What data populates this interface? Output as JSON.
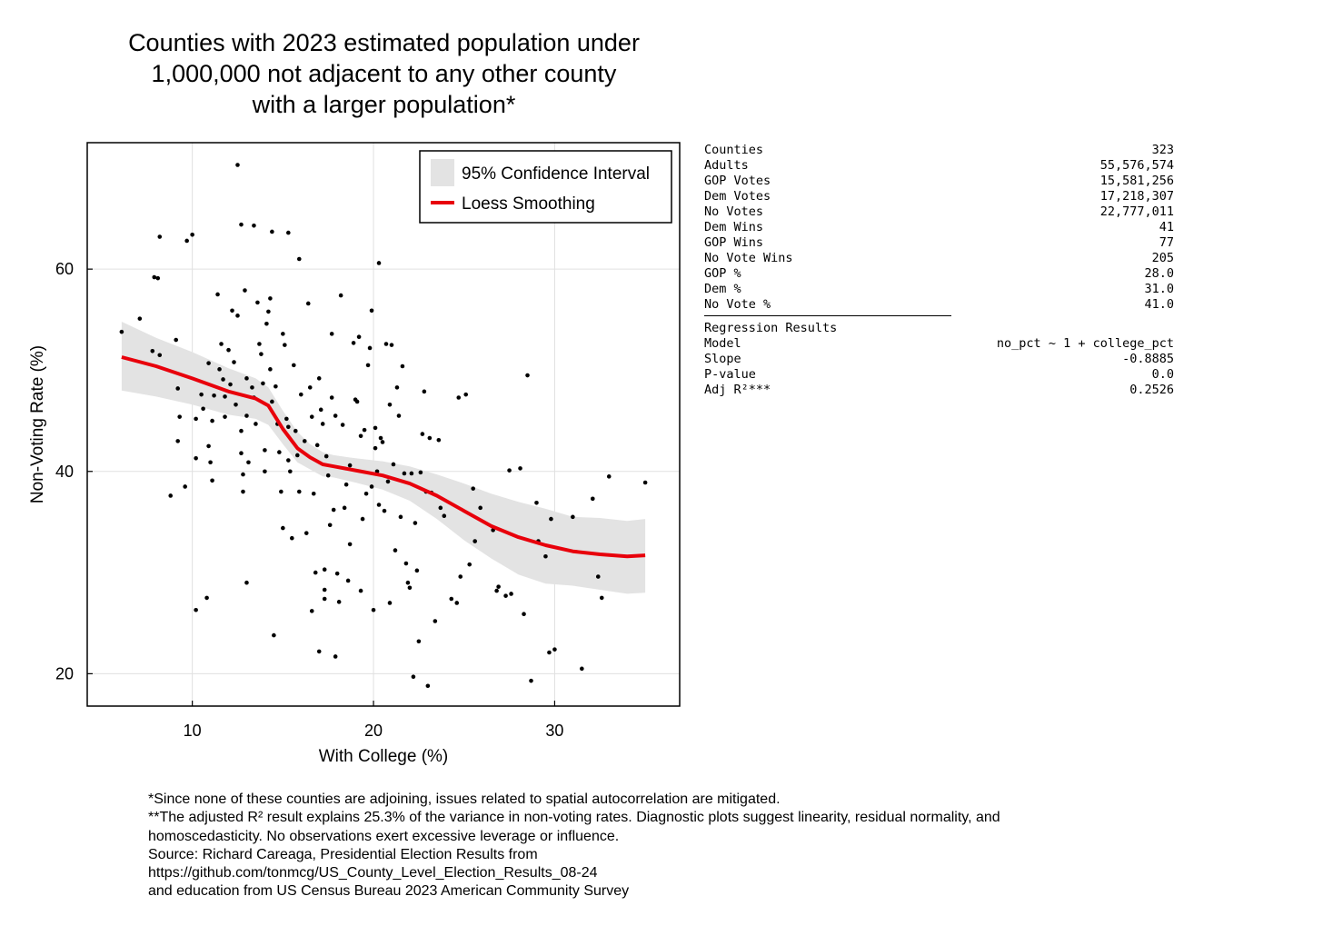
{
  "title_lines": [
    "Counties with 2023 estimated population under",
    "1,000,000 not adjacent to any other county",
    "with a larger population*"
  ],
  "stats": {
    "rows": [
      {
        "label": "Counties",
        "value": "323"
      },
      {
        "label": "Adults",
        "value": "55,576,574"
      },
      {
        "label": "GOP Votes",
        "value": "15,581,256"
      },
      {
        "label": "Dem Votes",
        "value": "17,218,307"
      },
      {
        "label": "No Votes",
        "value": "22,777,011"
      },
      {
        "label": "Dem Wins",
        "value": "41"
      },
      {
        "label": "GOP Wins",
        "value": "77"
      },
      {
        "label": "No Vote Wins",
        "value": "205"
      },
      {
        "label": "GOP %",
        "value": "28.0"
      },
      {
        "label": "Dem %",
        "value": "31.0"
      },
      {
        "label": "No Vote %",
        "value": "41.0"
      }
    ],
    "regression_heading": "Regression Results",
    "regression_rows": [
      {
        "label": "Model",
        "value": "no_pct ~ 1 + college_pct"
      },
      {
        "label": "Slope",
        "value": "-0.8885"
      },
      {
        "label": "P-value",
        "value": "0.0"
      },
      {
        "label": "Adj R²***",
        "value": "0.2526"
      }
    ]
  },
  "footnotes": [
    "*Since none of these counties are adjoining, issues related to spatial autocorrelation are mitigated.",
    "**The adjusted R² result explains 25.3% of the variance in non-voting rates.  Diagnostic plots suggest linearity, residual normality, and",
    "homoscedasticity. No observations exert excessive leverage or influence.",
    "Source: Richard Careaga, Presidential Election Results from",
    "https://github.com/tonmcg/US_County_Level_Election_Results_08-24",
    "and education from US Census Bureau 2023 American Community Survey"
  ],
  "colors": {
    "points": "#000000",
    "loess": "#e8000b",
    "ci_band": "#e3e3e3",
    "grid": "#e0e0e0"
  },
  "chart_data": {
    "type": "scatter",
    "xlabel": "With College (%)",
    "ylabel": "Non-Voting Rate (%)",
    "xlim": [
      4.2,
      36.9
    ],
    "ylim": [
      16.8,
      72.5
    ],
    "xticks": [
      10,
      20,
      30
    ],
    "yticks": [
      20,
      40,
      60
    ],
    "grid": true,
    "legend_position": "top-right",
    "legend": [
      {
        "label": "95% Confidence Interval",
        "kind": "band"
      },
      {
        "label": "Loess Smoothing",
        "kind": "line"
      }
    ],
    "points": [
      [
        6.1,
        53.8
      ],
      [
        7.1,
        55.1
      ],
      [
        7.8,
        51.9
      ],
      [
        7.9,
        59.2
      ],
      [
        8.1,
        59.1
      ],
      [
        8.2,
        63.2
      ],
      [
        8.2,
        51.5
      ],
      [
        9.7,
        62.8
      ],
      [
        10.0,
        63.4
      ],
      [
        12.5,
        70.3
      ],
      [
        12.7,
        64.4
      ],
      [
        13.4,
        64.3
      ],
      [
        14.4,
        63.7
      ],
      [
        15.3,
        63.6
      ],
      [
        15.9,
        61.0
      ],
      [
        20.3,
        60.6
      ],
      [
        9.1,
        53.0
      ],
      [
        9.2,
        48.2
      ],
      [
        9.3,
        45.4
      ],
      [
        9.2,
        43.0
      ],
      [
        8.8,
        37.6
      ],
      [
        9.6,
        38.5
      ],
      [
        10.2,
        45.2
      ],
      [
        10.2,
        41.3
      ],
      [
        10.2,
        26.3
      ],
      [
        10.8,
        27.5
      ],
      [
        10.5,
        47.6
      ],
      [
        10.6,
        46.2
      ],
      [
        10.9,
        50.7
      ],
      [
        10.9,
        42.5
      ],
      [
        11.1,
        45.0
      ],
      [
        11.1,
        39.1
      ],
      [
        11.0,
        40.9
      ],
      [
        11.2,
        47.5
      ],
      [
        11.4,
        57.5
      ],
      [
        11.5,
        50.1
      ],
      [
        11.6,
        52.6
      ],
      [
        11.7,
        49.1
      ],
      [
        11.8,
        47.4
      ],
      [
        11.8,
        45.4
      ],
      [
        12.0,
        52.0
      ],
      [
        12.1,
        48.6
      ],
      [
        12.2,
        55.9
      ],
      [
        12.3,
        50.8
      ],
      [
        12.4,
        46.6
      ],
      [
        12.5,
        55.4
      ],
      [
        12.7,
        44.0
      ],
      [
        12.7,
        41.8
      ],
      [
        12.8,
        39.7
      ],
      [
        12.8,
        38.0
      ],
      [
        12.9,
        57.9
      ],
      [
        13.0,
        49.2
      ],
      [
        13.0,
        45.5
      ],
      [
        13.1,
        40.9
      ],
      [
        13.0,
        29.0
      ],
      [
        13.3,
        48.3
      ],
      [
        13.4,
        47.3
      ],
      [
        13.5,
        44.7
      ],
      [
        13.6,
        56.7
      ],
      [
        13.7,
        52.6
      ],
      [
        13.8,
        51.6
      ],
      [
        13.9,
        48.7
      ],
      [
        14.0,
        42.1
      ],
      [
        14.0,
        40.0
      ],
      [
        14.1,
        54.6
      ],
      [
        14.2,
        55.8
      ],
      [
        14.3,
        57.1
      ],
      [
        14.3,
        50.1
      ],
      [
        14.4,
        46.9
      ],
      [
        14.5,
        23.8
      ],
      [
        14.6,
        48.4
      ],
      [
        14.7,
        44.7
      ],
      [
        14.8,
        41.9
      ],
      [
        14.9,
        38.0
      ],
      [
        15.0,
        53.6
      ],
      [
        15.0,
        34.4
      ],
      [
        15.1,
        52.5
      ],
      [
        15.2,
        45.2
      ],
      [
        15.3,
        44.4
      ],
      [
        15.3,
        41.1
      ],
      [
        15.4,
        40.0
      ],
      [
        15.5,
        33.4
      ],
      [
        15.6,
        50.5
      ],
      [
        15.7,
        44.0
      ],
      [
        15.8,
        41.6
      ],
      [
        15.9,
        38.0
      ],
      [
        16.0,
        47.6
      ],
      [
        16.2,
        43.0
      ],
      [
        16.3,
        33.9
      ],
      [
        16.4,
        56.6
      ],
      [
        16.5,
        48.3
      ],
      [
        16.6,
        45.4
      ],
      [
        16.6,
        26.2
      ],
      [
        16.7,
        37.8
      ],
      [
        16.8,
        30.0
      ],
      [
        16.9,
        42.6
      ],
      [
        17.0,
        49.2
      ],
      [
        17.0,
        22.2
      ],
      [
        17.1,
        46.1
      ],
      [
        17.2,
        44.7
      ],
      [
        17.3,
        30.3
      ],
      [
        17.3,
        28.3
      ],
      [
        17.3,
        27.4
      ],
      [
        17.4,
        41.5
      ],
      [
        17.5,
        39.6
      ],
      [
        17.6,
        34.7
      ],
      [
        17.7,
        53.6
      ],
      [
        17.7,
        47.3
      ],
      [
        17.8,
        36.2
      ],
      [
        17.9,
        45.5
      ],
      [
        17.9,
        21.7
      ],
      [
        18.0,
        29.9
      ],
      [
        18.1,
        27.1
      ],
      [
        18.2,
        57.4
      ],
      [
        18.3,
        44.6
      ],
      [
        18.4,
        36.4
      ],
      [
        18.5,
        38.7
      ],
      [
        18.6,
        29.2
      ],
      [
        18.7,
        40.6
      ],
      [
        18.7,
        32.8
      ],
      [
        18.9,
        52.7
      ],
      [
        19.0,
        47.1
      ],
      [
        19.1,
        46.9
      ],
      [
        19.2,
        53.3
      ],
      [
        19.3,
        43.5
      ],
      [
        19.3,
        28.2
      ],
      [
        19.4,
        35.3
      ],
      [
        19.5,
        44.1
      ],
      [
        19.6,
        37.8
      ],
      [
        19.7,
        50.5
      ],
      [
        19.8,
        52.2
      ],
      [
        19.9,
        55.9
      ],
      [
        19.9,
        38.5
      ],
      [
        20.0,
        26.3
      ],
      [
        20.1,
        44.3
      ],
      [
        20.1,
        42.3
      ],
      [
        20.2,
        40.0
      ],
      [
        20.3,
        36.7
      ],
      [
        20.4,
        43.3
      ],
      [
        20.5,
        42.9
      ],
      [
        20.6,
        36.1
      ],
      [
        20.7,
        52.6
      ],
      [
        20.8,
        39.0
      ],
      [
        20.9,
        46.6
      ],
      [
        20.9,
        27.0
      ],
      [
        21.0,
        52.5
      ],
      [
        21.1,
        40.7
      ],
      [
        21.2,
        32.2
      ],
      [
        21.3,
        48.3
      ],
      [
        21.4,
        45.5
      ],
      [
        21.5,
        35.5
      ],
      [
        21.6,
        50.4
      ],
      [
        21.7,
        39.8
      ],
      [
        21.8,
        30.9
      ],
      [
        21.9,
        29.0
      ],
      [
        22.0,
        28.5
      ],
      [
        22.1,
        39.8
      ],
      [
        22.2,
        19.7
      ],
      [
        22.3,
        34.9
      ],
      [
        22.4,
        30.2
      ],
      [
        22.5,
        23.2
      ],
      [
        22.6,
        39.9
      ],
      [
        22.7,
        43.7
      ],
      [
        22.8,
        47.9
      ],
      [
        22.9,
        38.0
      ],
      [
        23.0,
        18.8
      ],
      [
        23.1,
        43.3
      ],
      [
        23.2,
        37.9
      ],
      [
        23.4,
        25.2
      ],
      [
        23.6,
        43.1
      ],
      [
        23.7,
        36.4
      ],
      [
        23.9,
        35.6
      ],
      [
        24.3,
        27.4
      ],
      [
        24.6,
        27.0
      ],
      [
        24.7,
        47.3
      ],
      [
        24.8,
        29.6
      ],
      [
        25.1,
        47.6
      ],
      [
        25.3,
        30.8
      ],
      [
        25.5,
        38.3
      ],
      [
        25.6,
        33.1
      ],
      [
        25.9,
        36.4
      ],
      [
        26.6,
        34.2
      ],
      [
        26.8,
        28.2
      ],
      [
        26.9,
        28.6
      ],
      [
        27.3,
        27.7
      ],
      [
        27.5,
        40.1
      ],
      [
        27.6,
        27.9
      ],
      [
        28.1,
        40.3
      ],
      [
        28.3,
        25.9
      ],
      [
        28.5,
        49.5
      ],
      [
        28.7,
        19.3
      ],
      [
        29.0,
        36.9
      ],
      [
        29.1,
        33.1
      ],
      [
        29.5,
        31.6
      ],
      [
        29.7,
        22.1
      ],
      [
        29.8,
        35.3
      ],
      [
        30.0,
        22.4
      ],
      [
        31.0,
        35.5
      ],
      [
        31.5,
        20.5
      ],
      [
        32.1,
        37.3
      ],
      [
        32.4,
        29.6
      ],
      [
        32.6,
        27.5
      ],
      [
        33.0,
        39.5
      ],
      [
        35.0,
        38.9
      ]
    ],
    "loess_x": [
      6.1,
      8,
      10,
      12,
      13.5,
      14.2,
      15,
      15.8,
      16.5,
      17.2,
      17.8,
      19,
      20.5,
      22,
      23.5,
      25,
      26.5,
      28,
      29.5,
      31,
      32.5,
      34,
      35
    ],
    "loess_y": [
      51.3,
      50.4,
      49.2,
      47.9,
      47.2,
      46.5,
      44.2,
      42.3,
      41.4,
      40.7,
      40.5,
      40.1,
      39.6,
      38.8,
      37.6,
      36.1,
      34.6,
      33.5,
      32.7,
      32.1,
      31.8,
      31.6,
      31.7
    ],
    "ci_lower": [
      48.0,
      47.4,
      46.6,
      45.6,
      45.2,
      44.6,
      42.7,
      40.9,
      40.2,
      39.5,
      39.4,
      38.9,
      38.2,
      37.1,
      35.3,
      33.2,
      31.4,
      29.8,
      28.9,
      28.7,
      28.3,
      27.9,
      28.0
    ],
    "ci_upper": [
      54.8,
      53.2,
      51.8,
      50.2,
      49.2,
      48.3,
      46.0,
      43.9,
      42.7,
      41.9,
      41.6,
      41.3,
      41.0,
      40.5,
      39.7,
      38.8,
      37.8,
      37.0,
      36.3,
      35.5,
      35.4,
      35.1,
      35.3
    ]
  }
}
